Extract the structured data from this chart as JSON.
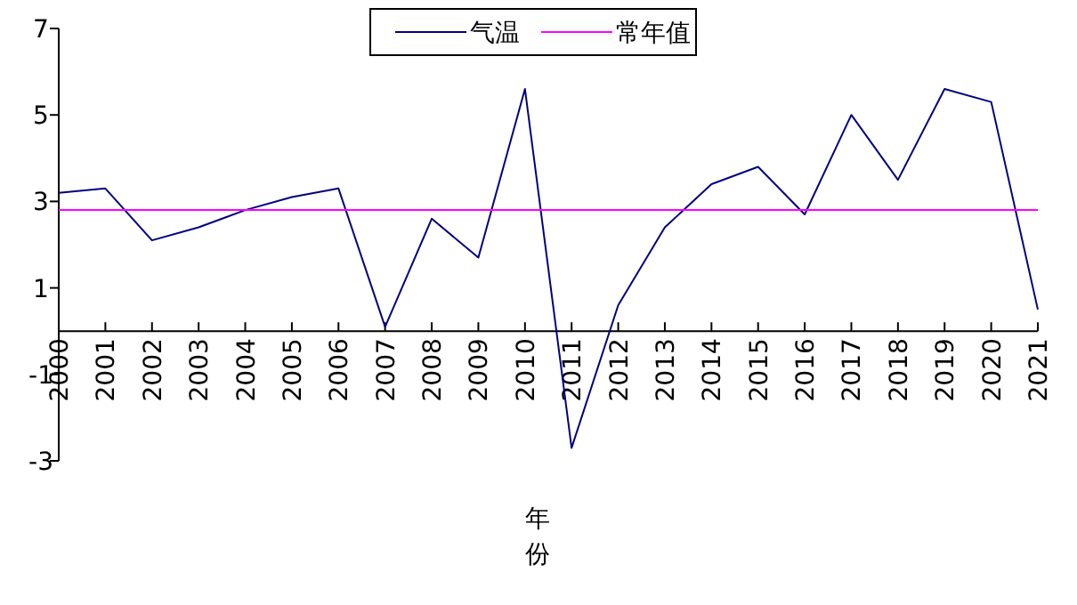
{
  "chart_data": {
    "type": "line",
    "xlabel": "年份",
    "legend": "top",
    "grid": false,
    "xlim": [
      2000,
      2021
    ],
    "xticks": [
      2000,
      2001,
      2002,
      2003,
      2004,
      2005,
      2006,
      2007,
      2008,
      2009,
      2010,
      2011,
      2012,
      2013,
      2014,
      2015,
      2016,
      2017,
      2018,
      2019,
      2020,
      2021
    ],
    "ylim": [
      -3,
      7
    ],
    "yticks": [
      -3,
      -1,
      1,
      3,
      5,
      7
    ],
    "x": [
      2000,
      2001,
      2002,
      2003,
      2004,
      2005,
      2006,
      2007,
      2008,
      2009,
      2010,
      2011,
      2012,
      2013,
      2014,
      2015,
      2016,
      2017,
      2018,
      2019,
      2020,
      2021
    ],
    "series": [
      {
        "name": "气温",
        "color": "#000080",
        "values": [
          3.2,
          3.3,
          2.1,
          2.4,
          2.8,
          3.1,
          3.3,
          0.1,
          2.6,
          1.7,
          5.6,
          -2.7,
          0.6,
          2.4,
          3.4,
          3.8,
          2.7,
          5.0,
          3.5,
          5.6,
          5.3,
          0.5
        ]
      },
      {
        "name": "常年值",
        "color": "#ff00ff",
        "type": "line",
        "x": [
          2000,
          2021
        ],
        "values": [
          2.8,
          2.8
        ]
      }
    ]
  }
}
